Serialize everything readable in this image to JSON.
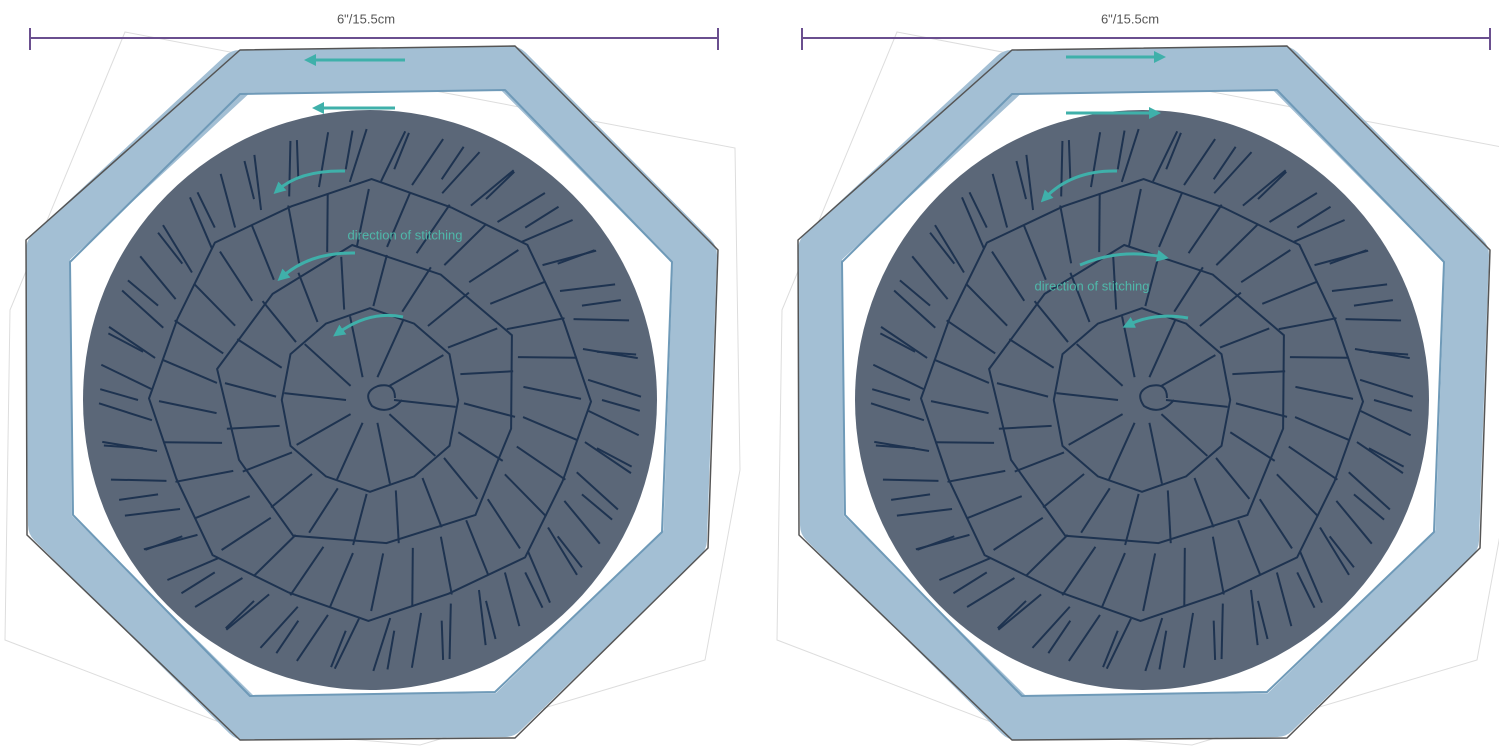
{
  "panels": [
    {
      "measurement": "6\"/15.5cm",
      "annotation": "direction of stitching"
    },
    {
      "measurement": "6\"/15.5cm",
      "annotation": "direction of stitching"
    }
  ]
}
